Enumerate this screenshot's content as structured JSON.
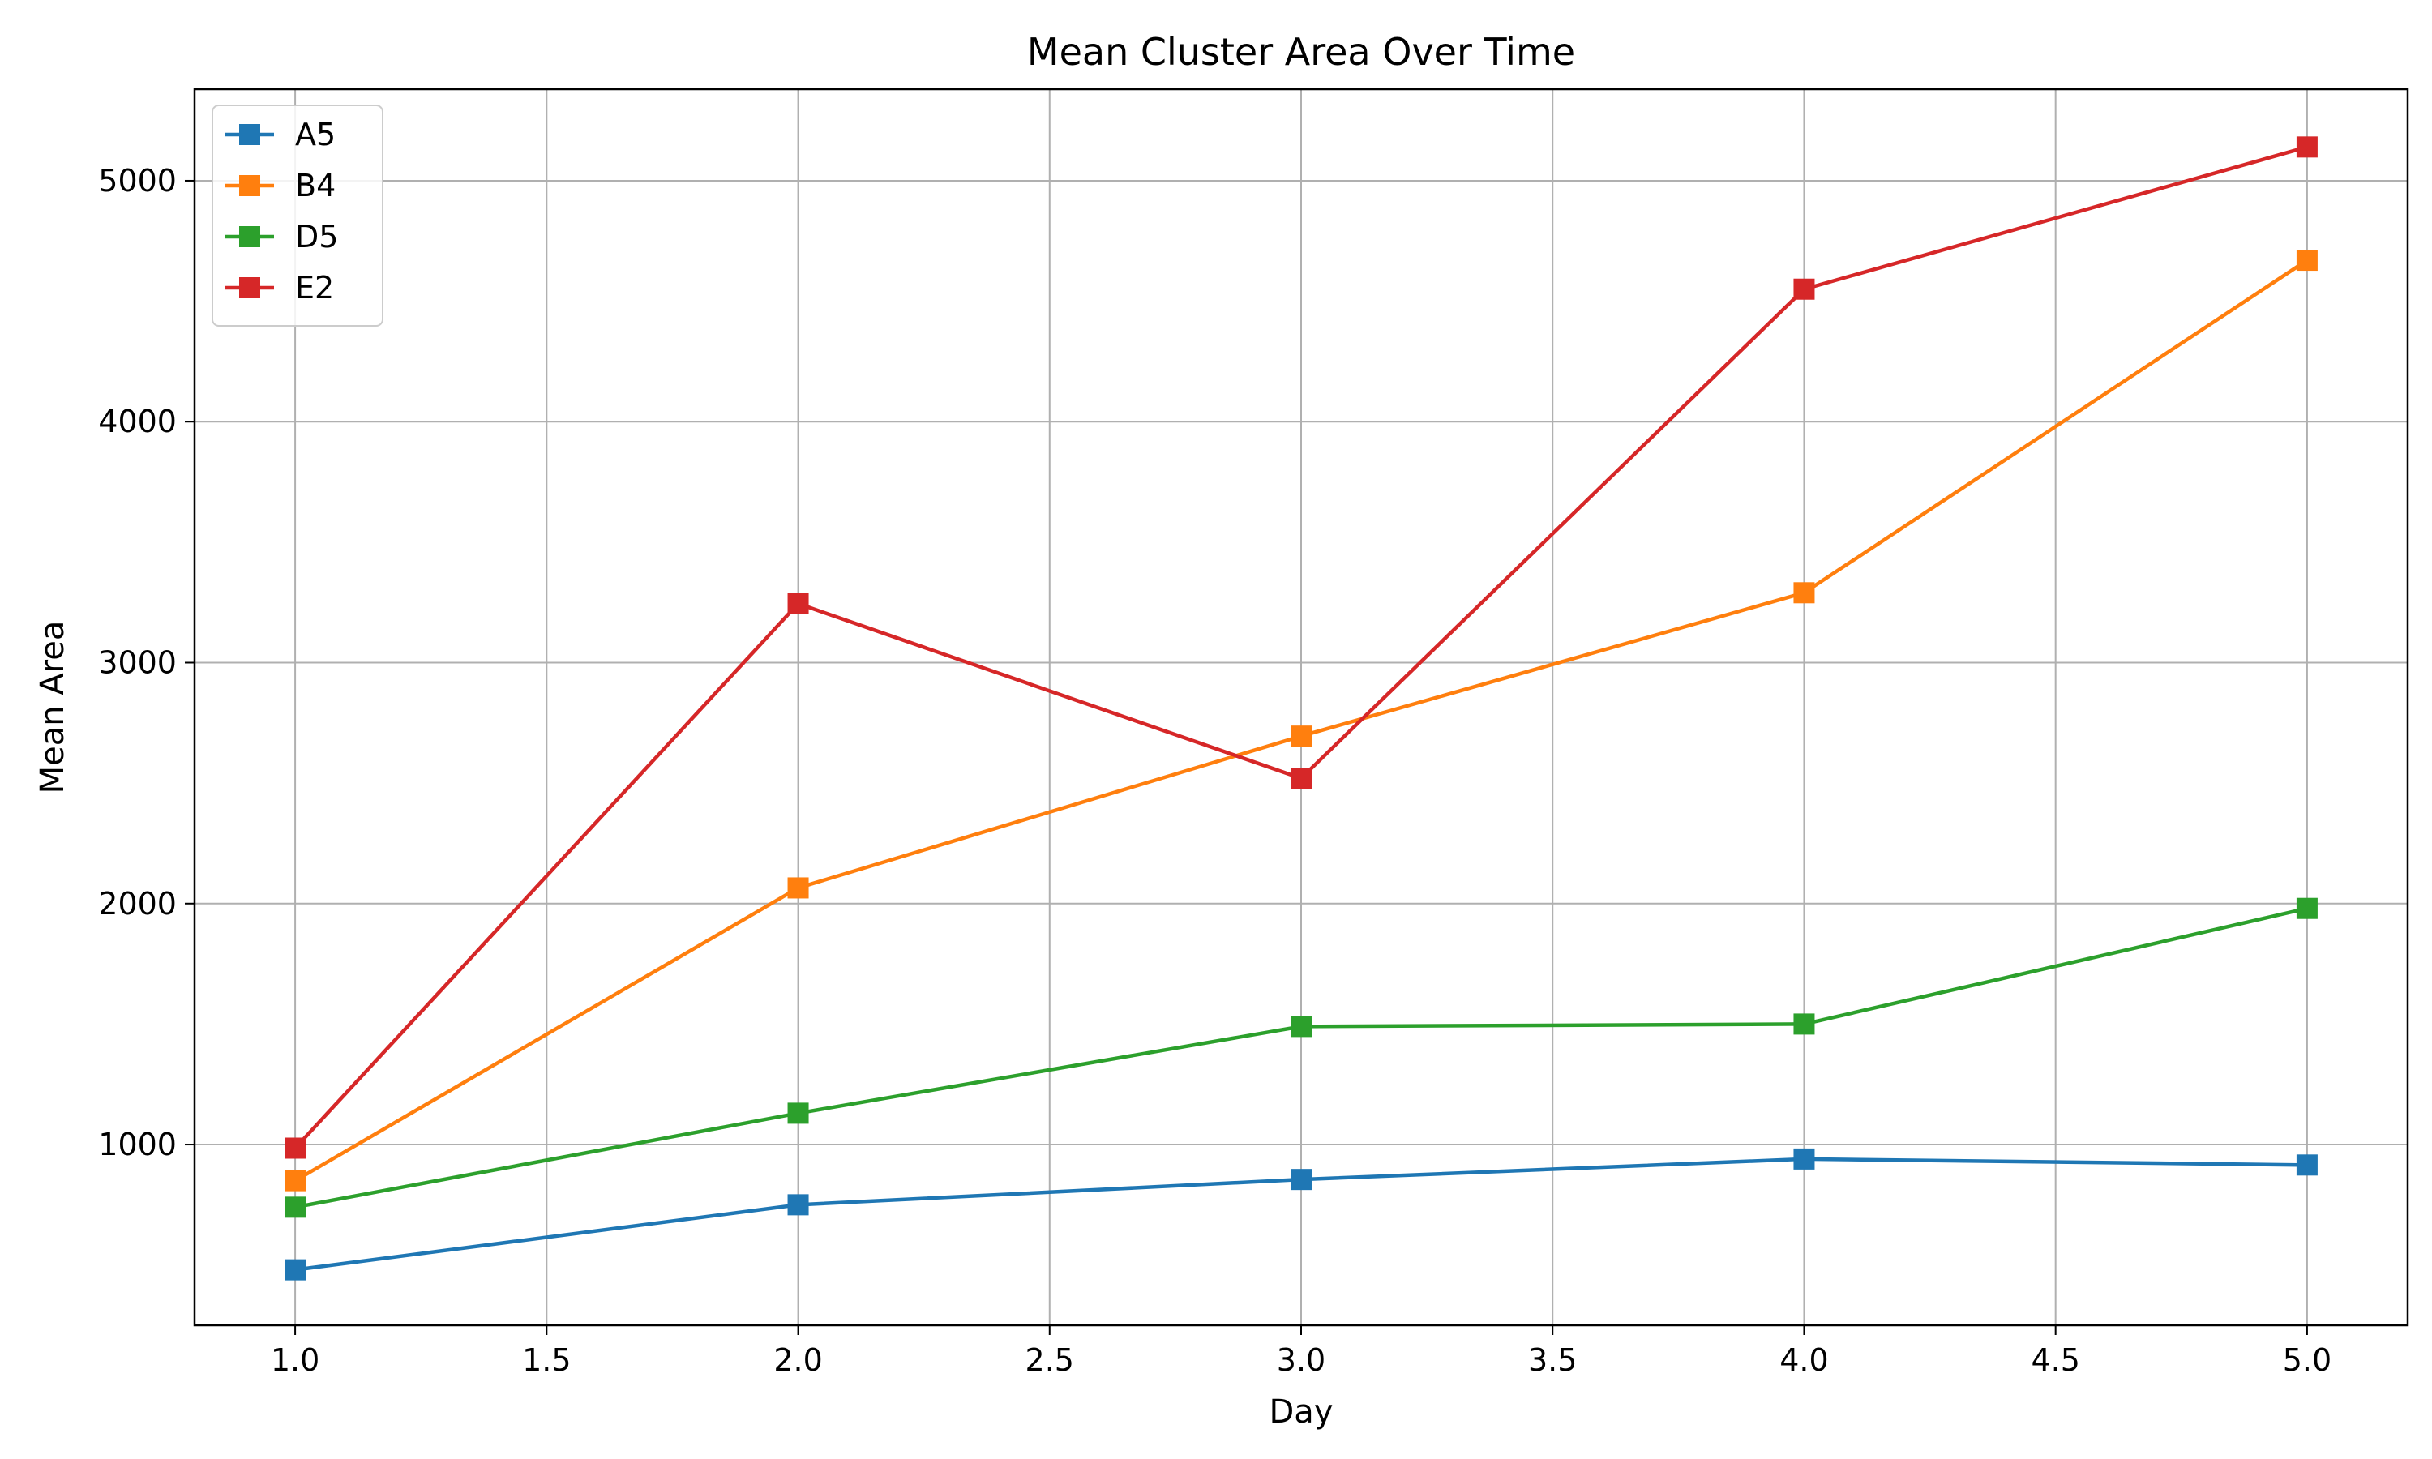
{
  "chart_data": {
    "type": "line",
    "title": "Mean Cluster Area Over Time",
    "xlabel": "Day",
    "ylabel": "Mean Area",
    "xlim": [
      0.8,
      5.2
    ],
    "ylim": [
      250,
      5380
    ],
    "xticks": [
      1.0,
      1.5,
      2.0,
      2.5,
      3.0,
      3.5,
      4.0,
      4.5,
      5.0
    ],
    "xtick_labels": [
      "1.0",
      "1.5",
      "2.0",
      "2.5",
      "3.0",
      "3.5",
      "4.0",
      "4.5",
      "5.0"
    ],
    "yticks": [
      1000,
      2000,
      3000,
      4000,
      5000
    ],
    "ytick_labels": [
      "1000",
      "2000",
      "3000",
      "4000",
      "5000"
    ],
    "grid": true,
    "legend_position": "upper-left",
    "marker": "square",
    "x": [
      1,
      2,
      3,
      4,
      5
    ],
    "series": [
      {
        "name": "A5",
        "color": "#1f77b4",
        "values": [
          480,
          750,
          855,
          940,
          915
        ]
      },
      {
        "name": "B4",
        "color": "#ff7f0e",
        "values": [
          850,
          2065,
          2695,
          3290,
          4670
        ]
      },
      {
        "name": "D5",
        "color": "#2ca02c",
        "values": [
          740,
          1130,
          1490,
          1500,
          1980
        ]
      },
      {
        "name": "E2",
        "color": "#d62728",
        "values": [
          985,
          3245,
          2520,
          4550,
          5140
        ]
      }
    ]
  }
}
